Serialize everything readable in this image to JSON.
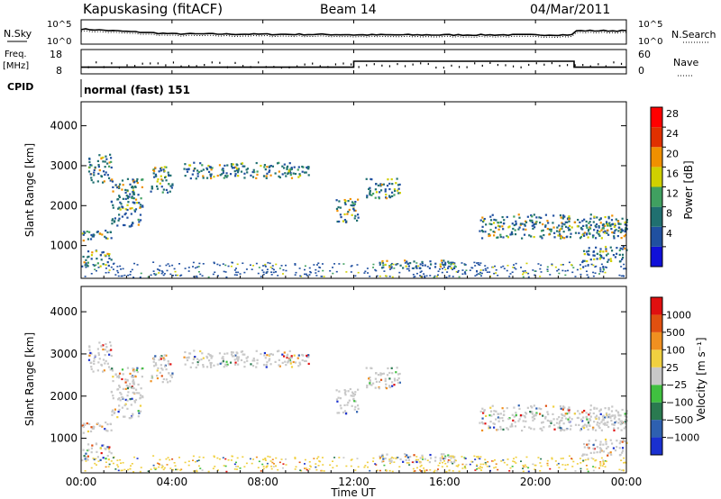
{
  "header": {
    "station": "Kapuskasing (fitACF)",
    "beam": "Beam 14",
    "date": "04/Mar/2011"
  },
  "noise_panel": {
    "left_label": "N.Sky",
    "right_label": "N.Search",
    "ticks": [
      "10^5",
      "10^0"
    ]
  },
  "freq_panel": {
    "left_label_1": "Freq.",
    "left_label_2": "[MHz]",
    "left_ticks": [
      "18",
      "8"
    ],
    "right_label": "Nave",
    "right_ticks": [
      "60",
      "0"
    ]
  },
  "cpid": {
    "label": "CPID",
    "mode": "normal (fast) 151"
  },
  "power_panel": {
    "ylabel": "Slant Range [km]",
    "yticks": [
      "4000",
      "3000",
      "2000",
      "1000"
    ],
    "colorbar_label": "Power [dB]",
    "colorbar_ticks": [
      "28",
      "24",
      "20",
      "16",
      "12",
      "8",
      "4"
    ],
    "colors": [
      "#1010d8",
      "#2050a0",
      "#207070",
      "#40a060",
      "#d0d000",
      "#f09000",
      "#e03000",
      "#ff0000"
    ]
  },
  "velocity_panel": {
    "ylabel": "Slant Range [km]",
    "yticks": [
      "4000",
      "3000",
      "2000",
      "1000"
    ],
    "colorbar_label": "Velocity [m s⁻¹]",
    "colorbar_ticks": [
      "1000",
      "500",
      "100",
      "25",
      "−25",
      "−100",
      "−500",
      "−1000"
    ],
    "colors": [
      "#1a30d0",
      "#2e60b0",
      "#2a7a50",
      "#40c040",
      "#c8c8c8",
      "#f0d040",
      "#f09020",
      "#e05010",
      "#e01010"
    ]
  },
  "xaxis": {
    "label": "Time UT",
    "ticks": [
      "00:00",
      "04:00",
      "08:00",
      "12:00",
      "16:00",
      "20:00",
      "00:00"
    ]
  },
  "chart_data": {
    "type": "heatmap",
    "title": "Kapuskasing (fitACF) Beam 14 04/Mar/2011",
    "xlabel": "Time UT",
    "ylabel": "Slant Range [km]",
    "xlim": [
      0,
      24
    ],
    "ylim": [
      180,
      4600
    ],
    "freq_series": {
      "name": "Freq.",
      "x": [
        0,
        12,
        12,
        21.7,
        21.7,
        24
      ],
      "values": [
        10,
        10,
        13,
        13,
        10,
        10
      ]
    },
    "echo_regions": [
      {
        "t0": 0.0,
        "t1": 1.3,
        "r0": 500,
        "r1": 900
      },
      {
        "t0": 0.0,
        "t1": 1.3,
        "r0": 1150,
        "r1": 1450
      },
      {
        "t0": 0.3,
        "t1": 1.3,
        "r0": 2600,
        "r1": 3300
      },
      {
        "t0": 1.3,
        "t1": 2.7,
        "r0": 1500,
        "r1": 2700
      },
      {
        "t0": 3.0,
        "t1": 4.0,
        "r0": 2300,
        "r1": 3000
      },
      {
        "t0": 4.5,
        "t1": 10.0,
        "r0": 2700,
        "r1": 3100
      },
      {
        "t0": 11.2,
        "t1": 12.2,
        "r0": 1600,
        "r1": 2200
      },
      {
        "t0": 12.5,
        "t1": 14.0,
        "r0": 2200,
        "r1": 2700
      },
      {
        "t0": 13.0,
        "t1": 16.5,
        "r0": 450,
        "r1": 650
      },
      {
        "t0": 17.5,
        "t1": 24.0,
        "r0": 1200,
        "r1": 1800
      },
      {
        "t0": 22.0,
        "t1": 24.0,
        "r0": 600,
        "r1": 1000
      },
      {
        "t0": 22.8,
        "t1": 24.0,
        "r0": 1300,
        "r1": 1600
      }
    ]
  }
}
